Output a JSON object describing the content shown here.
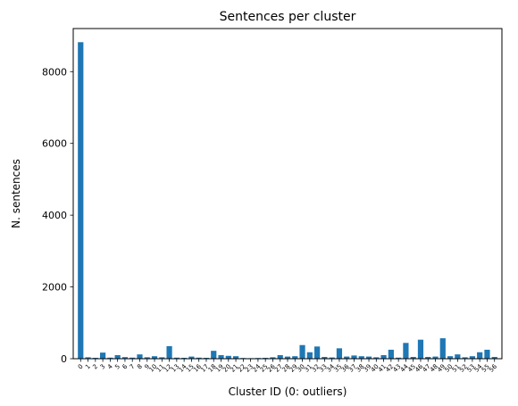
{
  "chart_data": {
    "type": "bar",
    "title": "Sentences per cluster",
    "xlabel": "Cluster ID (0: outliers)",
    "ylabel": "N. sentences",
    "ylim": [
      0,
      9200
    ],
    "yticks": [
      0,
      2000,
      4000,
      6000,
      8000
    ],
    "grid": false,
    "bar_color": "#1f77b4",
    "categories": [
      "0",
      "1",
      "2",
      "3",
      "4",
      "5",
      "6",
      "7",
      "8",
      "9",
      "10",
      "11",
      "12",
      "13",
      "14",
      "15",
      "16",
      "17",
      "18",
      "19",
      "20",
      "21",
      "22",
      "23",
      "24",
      "25",
      "26",
      "27",
      "28",
      "29",
      "30",
      "31",
      "32",
      "33",
      "34",
      "35",
      "36",
      "37",
      "38",
      "39",
      "40",
      "41",
      "42",
      "43",
      "44",
      "45",
      "46",
      "47",
      "48",
      "49",
      "50",
      "51",
      "52",
      "53",
      "54",
      "55",
      "56"
    ],
    "values": [
      8820,
      40,
      25,
      170,
      30,
      100,
      45,
      30,
      120,
      40,
      70,
      40,
      350,
      30,
      25,
      60,
      30,
      25,
      220,
      100,
      80,
      70,
      20,
      15,
      20,
      25,
      40,
      100,
      60,
      70,
      380,
      180,
      340,
      50,
      35,
      290,
      60,
      90,
      70,
      60,
      40,
      100,
      250,
      30,
      440,
      50,
      530,
      50,
      60,
      570,
      70,
      120,
      40,
      70,
      180,
      250,
      50
    ]
  }
}
